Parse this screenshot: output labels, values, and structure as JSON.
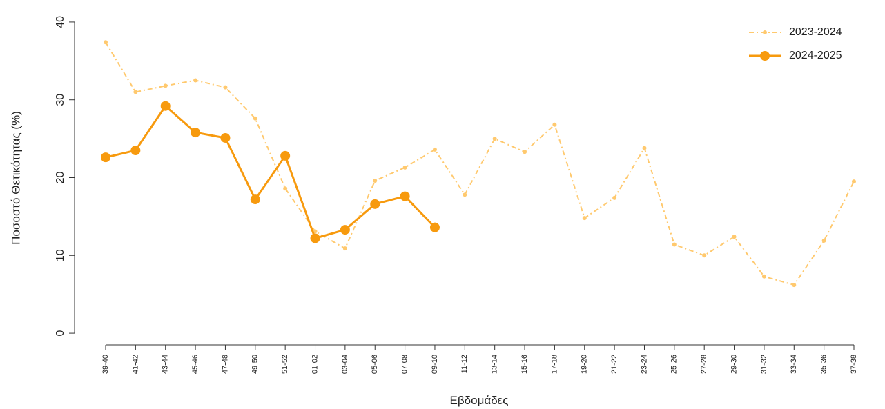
{
  "chart_data": {
    "type": "line",
    "x_label": "Εβδομάδες",
    "y_label": "Ποσοστό Θετικότητας (%)",
    "categories": [
      "39-40",
      "41-42",
      "43-44",
      "45-46",
      "47-48",
      "49-50",
      "51-52",
      "01-02",
      "03-04",
      "05-06",
      "07-08",
      "09-10",
      "11-12",
      "13-14",
      "15-16",
      "17-18",
      "19-20",
      "21-22",
      "23-24",
      "25-26",
      "27-28",
      "29-30",
      "31-32",
      "33-34",
      "35-36",
      "37-38"
    ],
    "series": [
      {
        "name": "2023-2024",
        "color": "#ffc96e",
        "dashed": true,
        "values": [
          37.4,
          31.0,
          31.8,
          32.5,
          31.6,
          27.6,
          18.6,
          13.1,
          10.9,
          19.6,
          21.3,
          23.6,
          17.8,
          25.0,
          23.3,
          26.8,
          14.8,
          17.4,
          23.8,
          11.4,
          10.0,
          12.4,
          7.3,
          6.2,
          11.9,
          19.5
        ]
      },
      {
        "name": "2024-2025",
        "color": "#f79a0e",
        "dashed": false,
        "values": [
          22.6,
          23.5,
          29.2,
          25.8,
          25.1,
          17.2,
          22.8,
          12.2,
          13.3,
          16.6,
          17.6,
          13.6,
          null,
          null,
          null,
          null,
          null,
          null,
          null,
          null,
          null,
          null,
          null,
          null,
          null,
          null
        ]
      }
    ],
    "ylim": [
      -1.5,
      41.5
    ],
    "yticks": [
      0,
      10,
      20,
      30,
      40
    ],
    "grid": false,
    "legend": "top-right"
  }
}
